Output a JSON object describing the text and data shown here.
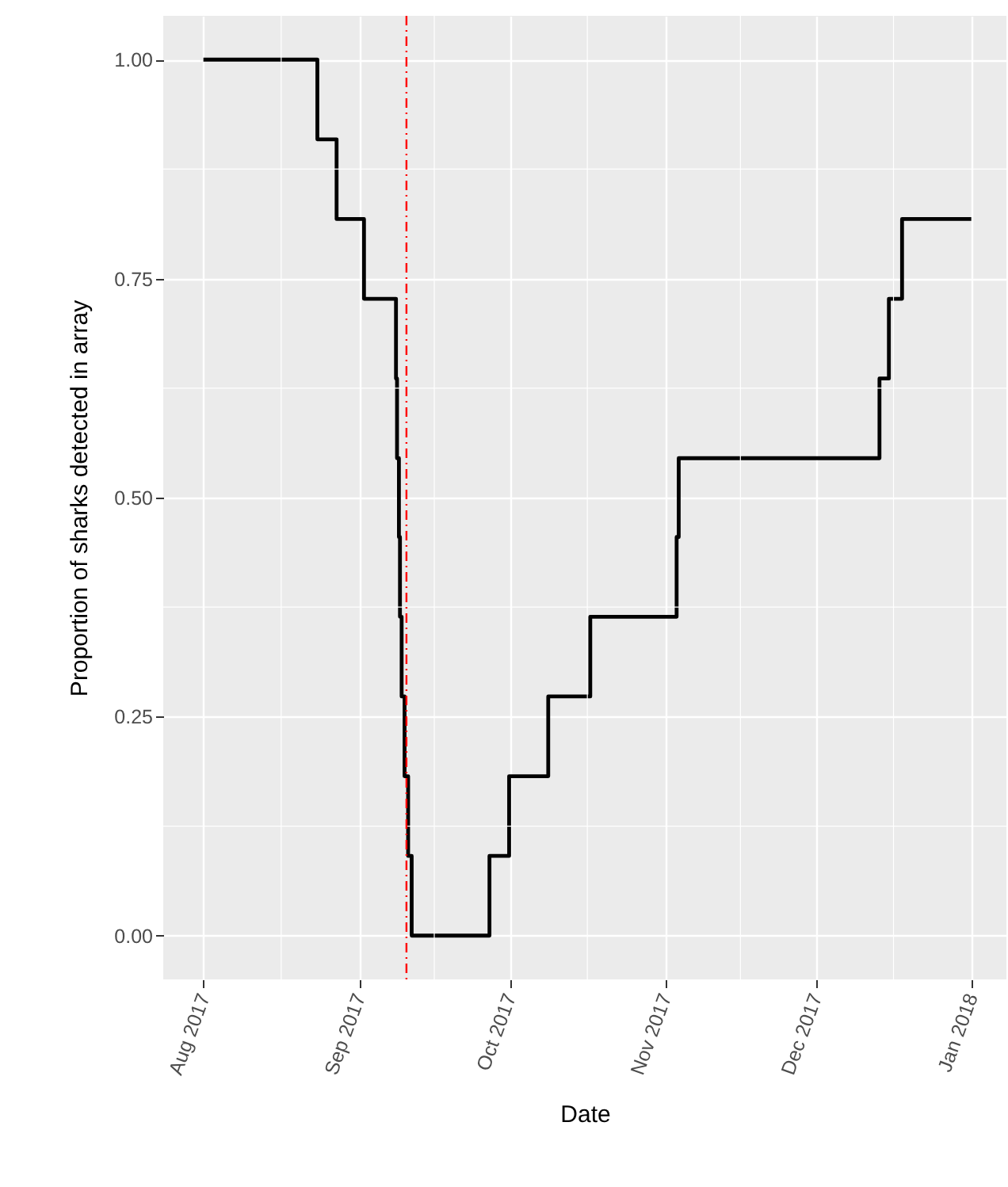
{
  "chart_data": {
    "type": "step",
    "xlabel": "Date",
    "ylabel": "Proportion of sharks detected in array",
    "x": [
      "2017-08-01T00:00",
      "2017-08-23T17:00",
      "2017-08-27T13:00",
      "2017-09-02T00:00",
      "2017-09-08T09:00",
      "2017-09-08T14:00",
      "2017-09-08T23:00",
      "2017-09-09T04:00",
      "2017-09-09T12:00",
      "2017-09-10T02:00",
      "2017-09-10T19:00",
      "2017-09-11T12:00",
      "2017-09-27T00:00",
      "2017-09-30T22:00",
      "2017-10-08T17:00",
      "2017-10-17T02:00",
      "2017-11-03T07:00",
      "2017-11-03T17:00",
      "2017-12-13T17:00",
      "2017-12-15T14:00",
      "2017-12-18T05:00",
      "2018-01-01T00:00"
    ],
    "series": [
      {
        "color": "#000000",
        "values": [
          1,
          0.909,
          0.818,
          0.727,
          0.636,
          0.545,
          0.455,
          0.364,
          0.273,
          0.182,
          0.091,
          0,
          0.091,
          0.182,
          0.273,
          0.364,
          0.455,
          0.545,
          0.636,
          0.727,
          0.818,
          0.818
        ]
      }
    ],
    "xlim": [
      "2017-07-24T00:00",
      "2018-01-08T00:00"
    ],
    "xticks": [
      {
        "value": "2017-08-01T00:00",
        "label": "Aug 2017"
      },
      {
        "value": "2017-09-01T00:00",
        "label": "Sep 2017"
      },
      {
        "value": "2017-10-01T00:00",
        "label": "Oct 2017"
      },
      {
        "value": "2017-11-01T00:00",
        "label": "Nov 2017"
      },
      {
        "value": "2017-12-01T00:00",
        "label": "Dec 2017"
      },
      {
        "value": "2018-01-01T00:00",
        "label": "Jan 2018"
      }
    ],
    "ylim": [
      -0.05,
      1.05
    ],
    "yticks": [
      {
        "value": 0,
        "label": "0.00"
      },
      {
        "value": 0.25,
        "label": "0.25"
      },
      {
        "value": 0.5,
        "label": "0.50"
      },
      {
        "value": 0.75,
        "label": "0.75"
      },
      {
        "value": 1,
        "label": "1.00"
      }
    ],
    "ref_lines": [
      {
        "axis": "x",
        "value": "2017-09-10T11:00",
        "color": "#ff0000",
        "line_style": "dashed"
      }
    ],
    "grid": true,
    "line_style": "solid"
  }
}
